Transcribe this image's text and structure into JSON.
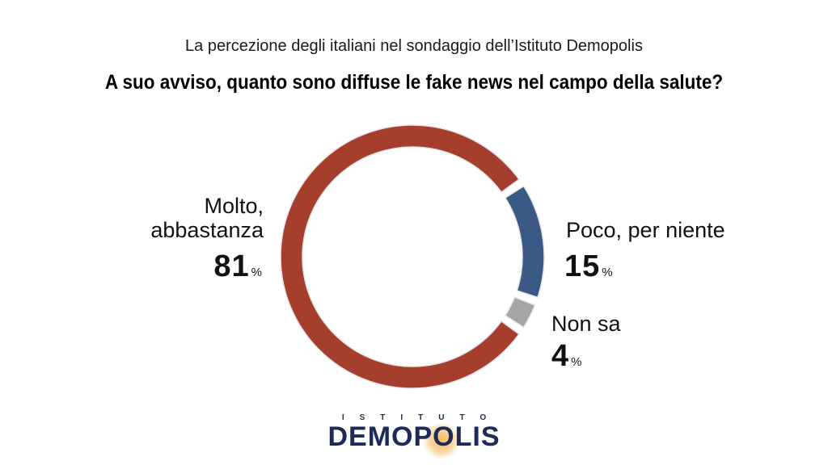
{
  "header": {
    "subtitle": "La percezione degli italiani nel sondaggio dell’Istituto Demopolis",
    "title": "A suo avviso, quanto sono diffuse le fake news nel campo della salute?"
  },
  "chart_data": {
    "type": "pie",
    "donut": true,
    "title": "A suo avviso, quanto sono diffuse le fake news nel campo della salute?",
    "categories": [
      "Molto, abbastanza",
      "Poco, per niente",
      "Non sa"
    ],
    "values": [
      81,
      15,
      4
    ],
    "unit": "%",
    "colors": [
      "#a63e2e",
      "#3a5a85",
      "#a5a5a5"
    ],
    "labels": [
      {
        "line1": "Molto,",
        "line2": "abbastanza",
        "value": "81",
        "unit": "%"
      },
      {
        "line1": "Poco, per niente",
        "value": "15",
        "unit": "%"
      },
      {
        "line1": "Non sa",
        "value": "4",
        "unit": "%"
      }
    ]
  },
  "logo": {
    "top": "ISTITUTO",
    "main": "DEMOPOLIS"
  }
}
